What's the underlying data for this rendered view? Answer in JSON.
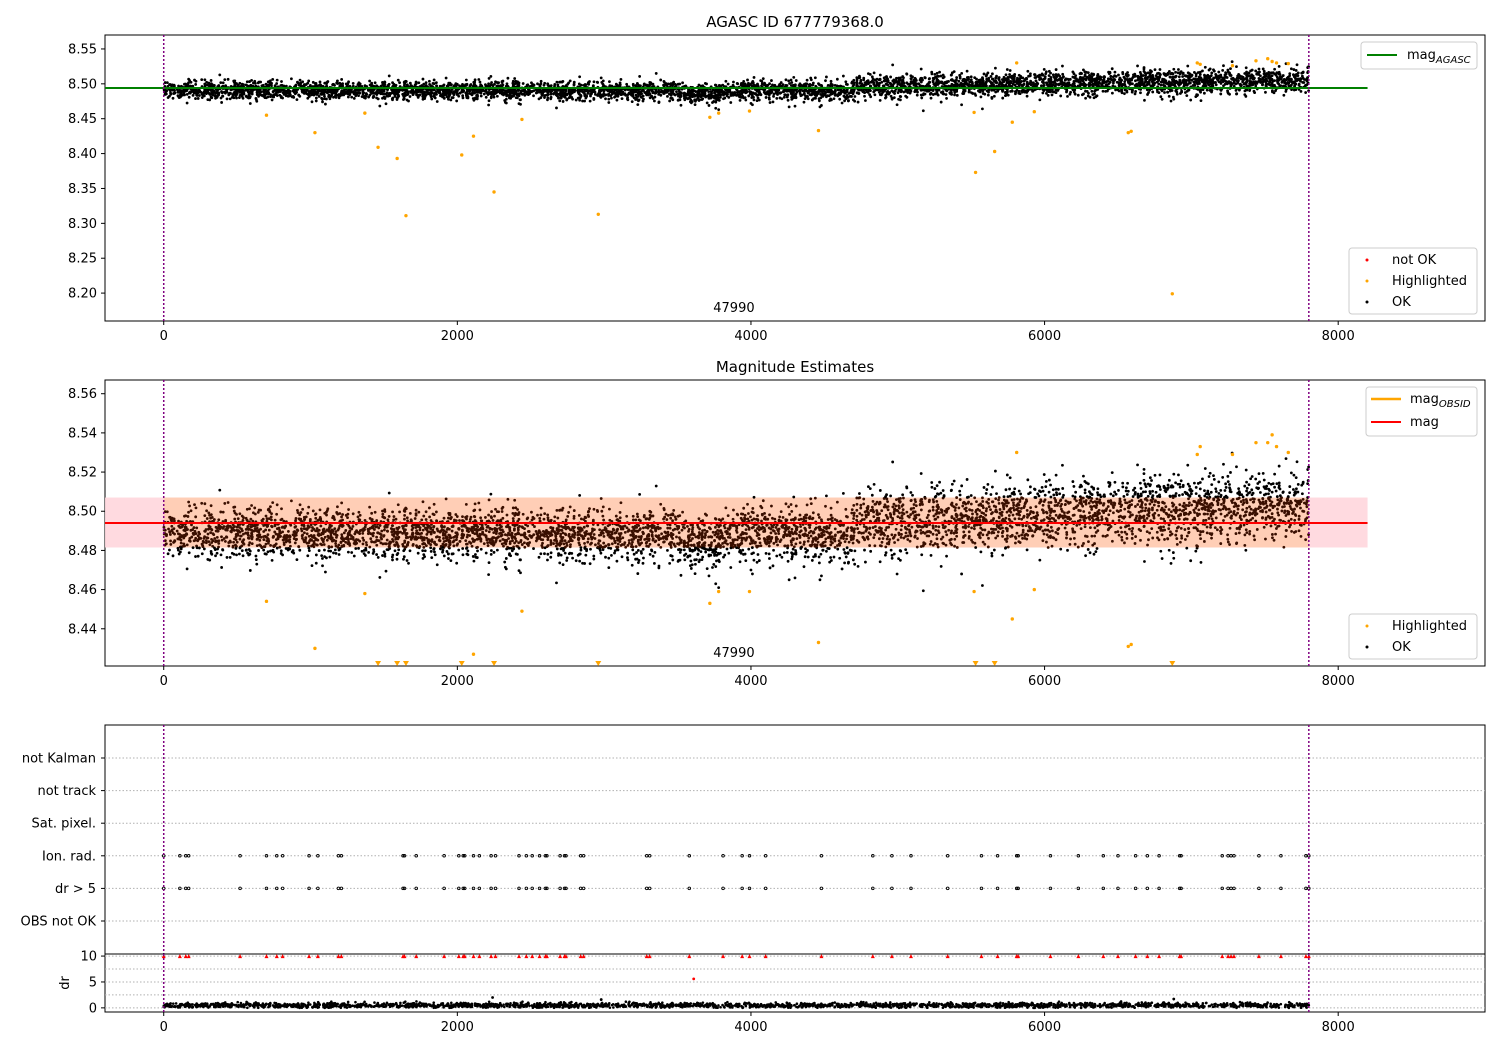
{
  "chart_data": [
    {
      "type": "scatter",
      "title": "AGASC ID 677779368.0",
      "xlim": [
        -400,
        9000
      ],
      "ylim": [
        8.16,
        8.57
      ],
      "xticks": [
        0,
        2000,
        4000,
        6000,
        8000
      ],
      "yticks": [
        8.2,
        8.25,
        8.3,
        8.35,
        8.4,
        8.45,
        8.5,
        8.55
      ],
      "vlines": [
        0,
        7800
      ],
      "hline": {
        "name": "mag_AGASC",
        "y": 8.494,
        "x": [
          -400,
          8200
        ],
        "color": "#008000"
      },
      "annotation": {
        "text": "47990",
        "x": 3900
      },
      "legend_upper": [
        {
          "label": "mag",
          "sub": "AGASC",
          "color": "#008000"
        }
      ],
      "legend_lower": [
        {
          "label": "not OK",
          "color": "#ff0000"
        },
        {
          "label": "Highlighted",
          "color": "#ffa500"
        },
        {
          "label": "OK",
          "color": "#000000"
        }
      ],
      "series": [
        {
          "name": "Highlighted",
          "color": "#ffa500",
          "points": [
            [
              700,
              8.455
            ],
            [
              1030,
              8.43
            ],
            [
              1370,
              8.458
            ],
            [
              1460,
              8.409
            ],
            [
              1590,
              8.393
            ],
            [
              1650,
              8.311
            ],
            [
              2030,
              8.398
            ],
            [
              2110,
              8.425
            ],
            [
              2250,
              8.345
            ],
            [
              2440,
              8.449
            ],
            [
              2960,
              8.313
            ],
            [
              3720,
              8.452
            ],
            [
              3780,
              8.458
            ],
            [
              3990,
              8.461
            ],
            [
              4460,
              8.433
            ],
            [
              5520,
              8.459
            ],
            [
              5530,
              8.373
            ],
            [
              5660,
              8.403
            ],
            [
              5780,
              8.445
            ],
            [
              5810,
              8.53
            ],
            [
              5930,
              8.46
            ],
            [
              6570,
              8.43
            ],
            [
              6590,
              8.432
            ],
            [
              6870,
              8.199
            ],
            [
              7040,
              8.53
            ],
            [
              7060,
              8.528
            ],
            [
              7280,
              8.526
            ],
            [
              7440,
              8.533
            ],
            [
              7520,
              8.536
            ],
            [
              7550,
              8.532
            ],
            [
              7580,
              8.53
            ],
            [
              7660,
              8.529
            ]
          ]
        }
      ]
    },
    {
      "type": "scatter",
      "title": "Magnitude Estimates",
      "xlim": [
        -400,
        9000
      ],
      "ylim": [
        8.421,
        8.567
      ],
      "xticks": [
        0,
        2000,
        4000,
        6000,
        8000
      ],
      "yticks": [
        8.44,
        8.46,
        8.48,
        8.5,
        8.52,
        8.54,
        8.56
      ],
      "vlines": [
        0,
        7800
      ],
      "band": {
        "y": [
          8.4815,
          8.507
        ],
        "x": [
          -400,
          8200
        ]
      },
      "hline": {
        "name": "mag",
        "y": 8.494,
        "x": [
          -400,
          8200
        ],
        "color": "#ff0000"
      },
      "annotation": {
        "text": "47990",
        "x": 3900
      },
      "legend_upper": [
        {
          "label": "mag",
          "sub": "OBSID",
          "color": "#ffa500"
        },
        {
          "label": "mag",
          "sub": "",
          "color": "#ff0000"
        }
      ],
      "legend_lower": [
        {
          "label": "Highlighted",
          "color": "#ffa500"
        },
        {
          "label": "OK",
          "color": "#000000"
        }
      ],
      "series": [
        {
          "name": "Highlighted",
          "color": "#ffa500",
          "points": [
            [
              700,
              8.454
            ],
            [
              1030,
              8.43
            ],
            [
              1370,
              8.458
            ],
            [
              2110,
              8.427
            ],
            [
              2440,
              8.449
            ],
            [
              3720,
              8.453
            ],
            [
              3780,
              8.459
            ],
            [
              3990,
              8.459
            ],
            [
              4460,
              8.433
            ],
            [
              5520,
              8.459
            ],
            [
              5780,
              8.445
            ],
            [
              5810,
              8.53
            ],
            [
              5930,
              8.46
            ],
            [
              6570,
              8.431
            ],
            [
              6590,
              8.432
            ],
            [
              7040,
              8.529
            ],
            [
              7060,
              8.533
            ],
            [
              7280,
              8.529
            ],
            [
              7440,
              8.535
            ],
            [
              7520,
              8.535
            ],
            [
              7550,
              8.539
            ],
            [
              7580,
              8.533
            ],
            [
              7660,
              8.53
            ]
          ]
        },
        {
          "name": "Highlighted (below axis)",
          "color": "#ffa500",
          "points": [
            [
              1460,
              8.421
            ],
            [
              1590,
              8.421
            ],
            [
              1650,
              8.421
            ],
            [
              2030,
              8.421
            ],
            [
              2250,
              8.421
            ],
            [
              2960,
              8.421
            ],
            [
              5530,
              8.421
            ],
            [
              5660,
              8.421
            ],
            [
              6870,
              8.421
            ]
          ]
        }
      ]
    },
    {
      "type": "scatter",
      "title": "",
      "xlim": [
        -400,
        9000
      ],
      "categories": [
        "not Kalman",
        "not track",
        "Sat. pixel.",
        "Ion. rad.",
        "dr > 5",
        "OBS not OK"
      ],
      "xticks": [
        0,
        2000,
        4000,
        6000,
        8000
      ],
      "vlines": [
        0,
        7800
      ],
      "flag_times": [
        0,
        110,
        150,
        170,
        520,
        700,
        770,
        810,
        990,
        1050,
        1190,
        1210,
        1630,
        1640,
        1720,
        1910,
        2010,
        2040,
        2050,
        2110,
        2150,
        2230,
        2260,
        2420,
        2470,
        2510,
        2560,
        2600,
        2610,
        2700,
        2730,
        2740,
        2840,
        2860,
        3290,
        3310,
        3580,
        3810,
        3940,
        3990,
        4100,
        4480,
        4830,
        4960,
        5090,
        5340,
        5570,
        5680,
        5810,
        5820,
        6040,
        6230,
        6400,
        6500,
        6620,
        6700,
        6780,
        6920,
        6930,
        7210,
        7250,
        7270,
        7290,
        7460,
        7610,
        7780,
        7800
      ],
      "flag_rows": [
        "Ion. rad.",
        "dr > 5"
      ]
    },
    {
      "type": "scatter",
      "title": "",
      "xlim": [
        -400,
        9000
      ],
      "ylim": [
        -0.8,
        10.4
      ],
      "ylabel": "dr",
      "xticks": [
        0,
        2000,
        4000,
        6000,
        8000
      ],
      "yticks": [
        0,
        5,
        10
      ],
      "vlines": [
        0,
        7800
      ],
      "series": [
        {
          "name": "not OK",
          "color": "#ff0000",
          "points": [
            [
              3610,
              5.6
            ]
          ]
        },
        {
          "name": "OK",
          "color": "#000000",
          "points": [
            [
              2240,
              2.0
            ],
            [
              2980,
              1.6
            ],
            [
              6880,
              1.7
            ]
          ]
        }
      ]
    }
  ]
}
